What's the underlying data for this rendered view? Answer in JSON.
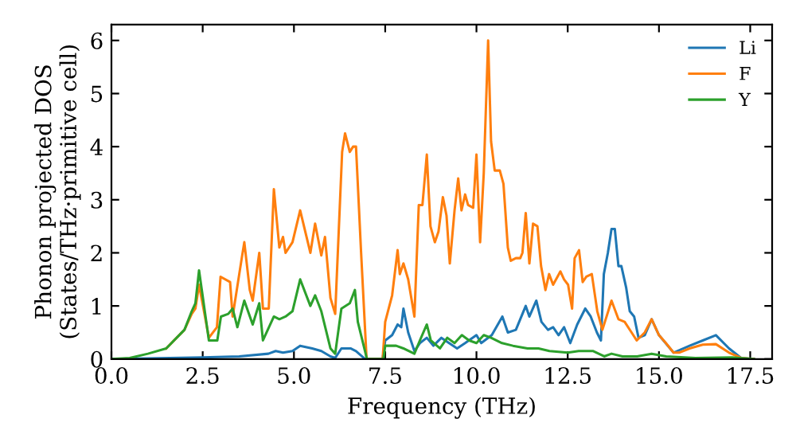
{
  "chart_data": {
    "type": "line",
    "xlabel": "Frequency (THz)",
    "ylabel": "Phonon projected DOS\n(States/THz·primitive cell)",
    "xlim": [
      0.0,
      18.1
    ],
    "xticks": [
      {
        "value": 0,
        "label": "0.0"
      },
      {
        "value": 2.5,
        "label": "2.5"
      },
      {
        "value": 5,
        "label": "5.0"
      },
      {
        "value": 7.5,
        "label": "7.5"
      },
      {
        "value": 10,
        "label": "10.0"
      },
      {
        "value": 12.5,
        "label": "12.5"
      },
      {
        "value": 15,
        "label": "15.0"
      },
      {
        "value": 17.5,
        "label": "17.5"
      }
    ],
    "ylim": [
      0,
      6.3
    ],
    "yticks": [
      0,
      1,
      2,
      3,
      4,
      5,
      6
    ],
    "grid": false,
    "legend": "top right",
    "marker": "none",
    "line_style": "solid",
    "series": [
      {
        "name": "Li",
        "color": "#1f77b4",
        "x": [
          0,
          1.0,
          2.5,
          3.5,
          4.3,
          4.5,
          4.7,
          4.96,
          5.17,
          5.5,
          5.75,
          6.0,
          6.13,
          6.3,
          6.55,
          6.7,
          6.95,
          7.43,
          7.5,
          7.69,
          7.84,
          7.94,
          8.0,
          8.13,
          8.3,
          8.45,
          8.64,
          8.82,
          9.04,
          9.25,
          9.47,
          9.69,
          10.0,
          10.13,
          10.42,
          10.71,
          10.86,
          11.08,
          11.35,
          11.45,
          11.64,
          11.78,
          11.96,
          12.1,
          12.25,
          12.4,
          12.57,
          12.76,
          12.98,
          13.13,
          13.3,
          13.41,
          13.49,
          13.6,
          13.7,
          13.79,
          13.89,
          13.97,
          14.1,
          14.2,
          14.32,
          14.44,
          14.61,
          14.8,
          15.0,
          15.4,
          15.84,
          16.2,
          16.56,
          16.92,
          17.25,
          17.6
        ],
        "values": [
          0,
          0.01,
          0.03,
          0.05,
          0.1,
          0.15,
          0.12,
          0.15,
          0.25,
          0.2,
          0.15,
          0.05,
          0.02,
          0.2,
          0.2,
          0.15,
          0.0,
          0.0,
          0.35,
          0.45,
          0.65,
          0.6,
          0.95,
          0.5,
          0.15,
          0.3,
          0.4,
          0.25,
          0.4,
          0.3,
          0.2,
          0.3,
          0.45,
          0.3,
          0.45,
          0.8,
          0.5,
          0.55,
          1.0,
          0.8,
          1.1,
          0.7,
          0.55,
          0.6,
          0.45,
          0.6,
          0.3,
          0.65,
          0.95,
          0.8,
          0.5,
          0.35,
          1.6,
          2.0,
          2.45,
          2.45,
          1.75,
          1.75,
          1.35,
          0.9,
          0.8,
          0.4,
          0.45,
          0.75,
          0.45,
          0.12,
          0.25,
          0.35,
          0.45,
          0.2,
          0.02,
          0.0
        ]
      },
      {
        "name": "F",
        "color": "#ff7f0e",
        "x": [
          1.5,
          2.0,
          2.2,
          2.3,
          2.4,
          2.67,
          2.89,
          2.99,
          3.25,
          3.32,
          3.57,
          3.64,
          3.79,
          3.87,
          4.05,
          4.15,
          4.31,
          4.45,
          4.6,
          4.7,
          4.77,
          4.96,
          5.17,
          5.45,
          5.58,
          5.75,
          5.85,
          6.0,
          6.13,
          6.32,
          6.4,
          6.53,
          6.62,
          6.7,
          6.84,
          6.99,
          7.43,
          7.5,
          7.69,
          7.84,
          7.9,
          8.0,
          8.13,
          8.3,
          8.42,
          8.52,
          8.64,
          8.74,
          8.86,
          8.96,
          9.08,
          9.18,
          9.27,
          9.4,
          9.5,
          9.59,
          9.69,
          9.77,
          9.91,
          10.0,
          10.1,
          10.2,
          10.32,
          10.4,
          10.5,
          10.64,
          10.74,
          10.86,
          10.94,
          11.08,
          11.2,
          11.26,
          11.35,
          11.45,
          11.55,
          11.67,
          11.77,
          11.89,
          11.99,
          12.1,
          12.22,
          12.3,
          12.4,
          12.51,
          12.62,
          12.69,
          12.81,
          12.91,
          13.01,
          13.16,
          13.31,
          13.45,
          13.7,
          13.89,
          14.06,
          14.25,
          14.39,
          14.61,
          14.8,
          15.0,
          15.19,
          15.4,
          15.55,
          15.84,
          16.2,
          16.56,
          16.92,
          17.25,
          17.6
        ],
        "values": [
          0.2,
          0.55,
          0.85,
          0.95,
          1.4,
          0.4,
          0.6,
          1.55,
          1.45,
          0.8,
          1.9,
          2.2,
          1.3,
          1.1,
          2.0,
          0.95,
          0.95,
          3.2,
          2.1,
          2.3,
          2.0,
          2.2,
          2.8,
          2.0,
          2.55,
          1.95,
          2.3,
          1.15,
          0.85,
          3.9,
          4.25,
          3.9,
          4.0,
          4.0,
          2.0,
          0.0,
          0.0,
          0.7,
          1.2,
          2.05,
          1.6,
          1.8,
          1.5,
          0.8,
          2.9,
          2.9,
          3.85,
          2.5,
          2.2,
          2.4,
          3.05,
          2.7,
          1.8,
          2.8,
          3.4,
          2.8,
          3.1,
          2.9,
          2.85,
          3.85,
          2.2,
          3.5,
          6.0,
          4.1,
          3.55,
          3.55,
          3.3,
          2.1,
          1.85,
          1.9,
          1.9,
          2.0,
          2.75,
          1.8,
          2.55,
          2.5,
          1.75,
          1.3,
          1.6,
          1.4,
          1.55,
          1.65,
          1.5,
          1.4,
          0.95,
          1.9,
          2.05,
          1.45,
          1.55,
          1.6,
          0.9,
          0.55,
          1.1,
          0.75,
          0.7,
          0.5,
          0.35,
          0.5,
          0.75,
          0.45,
          0.3,
          0.12,
          0.12,
          0.2,
          0.27,
          0.28,
          0.12,
          0.02,
          0.0
        ]
      },
      {
        "name": "Y",
        "color": "#2ca02c",
        "x": [
          0,
          0.5,
          1.0,
          1.5,
          2.0,
          2.2,
          2.3,
          2.4,
          2.67,
          2.9,
          3.0,
          3.2,
          3.32,
          3.45,
          3.64,
          3.87,
          4.05,
          4.15,
          4.45,
          4.6,
          4.77,
          4.96,
          5.17,
          5.45,
          5.58,
          5.75,
          6.0,
          6.13,
          6.3,
          6.53,
          6.67,
          6.75,
          7.0,
          7.45,
          7.5,
          7.8,
          8.0,
          8.3,
          8.45,
          8.64,
          8.75,
          9.0,
          9.2,
          9.4,
          9.6,
          9.8,
          10.0,
          10.2,
          10.4,
          10.7,
          11.0,
          11.4,
          11.7,
          12.0,
          12.5,
          12.8,
          13.0,
          13.2,
          13.5,
          13.7,
          14.0,
          14.4,
          14.8,
          15.2,
          16.0,
          17.0,
          17.6
        ],
        "values": [
          0,
          0.02,
          0.1,
          0.2,
          0.55,
          0.9,
          1.05,
          1.67,
          0.35,
          0.35,
          0.8,
          0.85,
          0.95,
          0.6,
          1.1,
          0.65,
          1.05,
          0.35,
          0.8,
          0.75,
          0.8,
          0.9,
          1.5,
          1.0,
          1.2,
          0.9,
          0.2,
          0.1,
          0.95,
          1.05,
          1.3,
          0.7,
          0.0,
          0.0,
          0.25,
          0.25,
          0.2,
          0.1,
          0.35,
          0.65,
          0.35,
          0.2,
          0.4,
          0.3,
          0.45,
          0.35,
          0.3,
          0.45,
          0.4,
          0.3,
          0.25,
          0.2,
          0.2,
          0.15,
          0.12,
          0.15,
          0.15,
          0.15,
          0.05,
          0.1,
          0.05,
          0.05,
          0.1,
          0.05,
          0.02,
          0.03,
          0.0
        ]
      }
    ]
  }
}
